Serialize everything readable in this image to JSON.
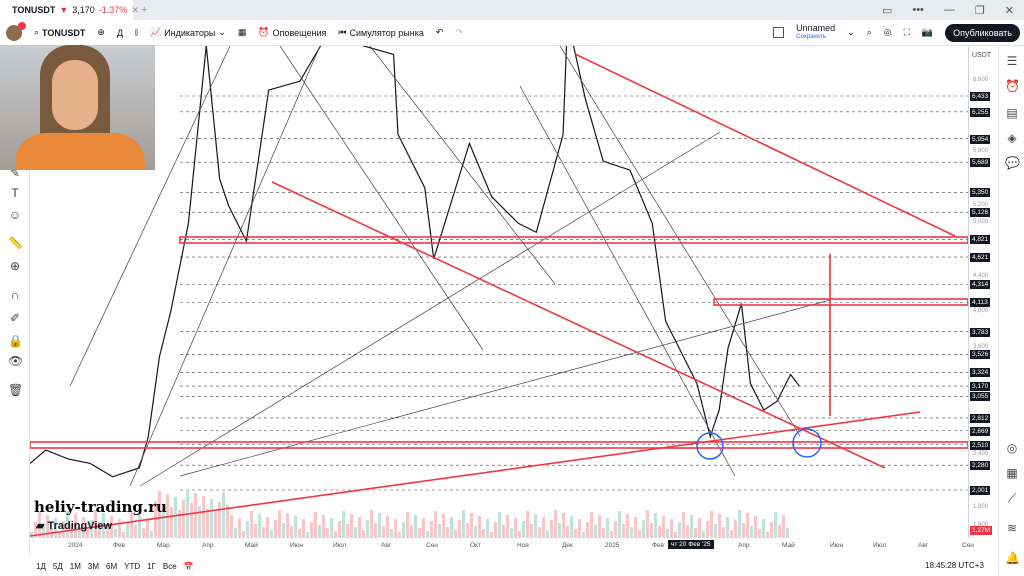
{
  "tab": {
    "symbol": "TONUSDT",
    "price": "3,170",
    "change": "-1.37%"
  },
  "window": {
    "close": "✕",
    "minimize": "—",
    "restore": "❐",
    "more": "•••",
    "newtab": "+"
  },
  "toolbar": {
    "symbol": "TONUSDT",
    "interval": "Д",
    "indicators": "Индикаторы",
    "alerts": "Оповещения",
    "replay": "Симулятор рынка",
    "layout_name": "Unnamed",
    "layout_status": "Сохранить",
    "publish": "Опубликовать",
    "notification_count": "3"
  },
  "price_axis": {
    "currency": "USDT",
    "levels": [
      "6,433",
      "6,255",
      "5,954",
      "5,689",
      "5,350",
      "5,126",
      "4,821",
      "4,621",
      "4,314",
      "4,113",
      "3,783",
      "3,526",
      "3,324",
      "3,170",
      "3,055",
      "2,812",
      "2,669",
      "2,510",
      "2,280",
      "2,001"
    ],
    "volume_label": "1,27M",
    "ticks": [
      "6,600",
      "5,800",
      "5,200",
      "5,000",
      "4,400",
      "4,000",
      "3,600",
      "2,400",
      "1,800",
      "1,600"
    ]
  },
  "time_axis": {
    "labels": [
      "2024",
      "Фев",
      "Мар",
      "Апр",
      "Май",
      "Июн",
      "Июл",
      "Авг",
      "Сен",
      "Окт",
      "Ноя",
      "Дек",
      "2025",
      "Фев",
      "Апр",
      "Май",
      "Июн",
      "Июл",
      "Авг",
      "Сен"
    ],
    "crosshair": "чт 20 Фев '25"
  },
  "range_buttons": [
    "1Д",
    "5Д",
    "1М",
    "3М",
    "6М",
    "YTD",
    "1Г",
    "Все"
  ],
  "clock": "18:45:28 UTC+3",
  "watermark": "heliy-trading.ru",
  "brand": "TradingView",
  "colors": {
    "accent": "#f23645",
    "dark": "#131722",
    "circle": "#2962ff"
  },
  "series": [
    [
      -0.85,
      2.3
    ],
    [
      -0.5,
      2.45
    ],
    [
      0,
      2.35
    ],
    [
      0.5,
      2.3
    ],
    [
      1,
      2.15
    ],
    [
      1.6,
      2.25
    ],
    [
      1.8,
      2.6
    ],
    [
      2.05,
      3.5
    ],
    [
      2.3,
      4.0
    ],
    [
      2.7,
      5.0
    ],
    [
      3.1,
      7.0
    ],
    [
      3.4,
      5.5
    ],
    [
      3.6,
      5.2
    ],
    [
      4.0,
      4.8
    ],
    [
      4.5,
      6.5
    ],
    [
      5.2,
      6.6
    ],
    [
      5.9,
      7.2
    ],
    [
      6.6,
      7.0
    ],
    [
      7.3,
      6.9
    ],
    [
      7.4,
      6.0
    ],
    [
      8.0,
      5.4
    ],
    [
      8.2,
      4.6
    ],
    [
      9.0,
      5.9
    ],
    [
      9.5,
      5.3
    ],
    [
      10.1,
      5.0
    ],
    [
      10.5,
      4.9
    ],
    [
      11.1,
      6.0
    ],
    [
      11.2,
      7.3
    ],
    [
      11.6,
      6.4
    ],
    [
      12.0,
      5.7
    ],
    [
      12.6,
      5.6
    ],
    [
      13.1,
      5.0
    ],
    [
      13.4,
      3.9
    ],
    [
      13.8,
      3.5
    ],
    [
      14.1,
      3.2
    ],
    [
      14.4,
      2.6
    ],
    [
      14.6,
      2.9
    ],
    [
      14.8,
      3.6
    ],
    [
      15.1,
      4.1
    ],
    [
      15.3,
      3.2
    ],
    [
      15.6,
      2.9
    ],
    [
      15.9,
      3.0
    ],
    [
      16.2,
      3.3
    ],
    [
      16.4,
      3.17
    ]
  ]
}
